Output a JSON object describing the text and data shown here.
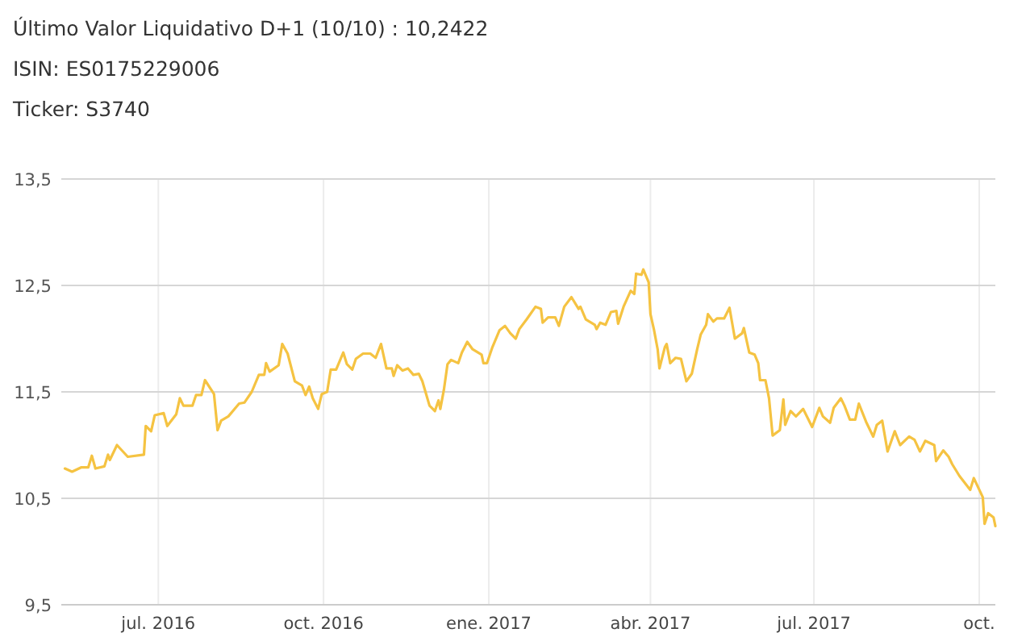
{
  "chart_data": {
    "type": "line",
    "title": "Último Valor Liquidativo D+1 (10/10) : 10,2422",
    "subtitle": "ISIN: ES0175229006",
    "annotations": [
      "Ticker: S3740"
    ],
    "xlim": [
      "2016-05-08",
      "2017-10-10"
    ],
    "xticks": [
      {
        "value": "2016-07-01",
        "label": "jul. 2016"
      },
      {
        "value": "2016-10-01",
        "label": "oct. 2016"
      },
      {
        "value": "2017-01-01",
        "label": "ene. 2017"
      },
      {
        "value": "2017-04-01",
        "label": "abr. 2017"
      },
      {
        "value": "2017-07-01",
        "label": "jul. 2017"
      },
      {
        "value": "2017-10-01",
        "label": "oct."
      }
    ],
    "ylim": [
      9.5,
      13.5
    ],
    "yticks": [
      {
        "value": 9.5,
        "label": "9,5"
      },
      {
        "value": 10.5,
        "label": "10,5"
      },
      {
        "value": 11.5,
        "label": "11,5"
      },
      {
        "value": 12.5,
        "label": "12,5"
      },
      {
        "value": 13.5,
        "label": "13,5"
      }
    ],
    "grid": true,
    "marker": "none",
    "line_style": "solid",
    "series": [
      {
        "color": "#f5c342",
        "x": [
          "2016-05-10",
          "2016-05-14",
          "2016-05-19",
          "2016-05-23",
          "2016-05-25",
          "2016-05-27",
          "2016-06-01",
          "2016-06-03",
          "2016-06-04",
          "2016-06-08",
          "2016-06-14",
          "2016-06-23",
          "2016-06-24",
          "2016-06-27",
          "2016-06-29",
          "2016-07-04",
          "2016-07-06",
          "2016-07-11",
          "2016-07-13",
          "2016-07-15",
          "2016-07-20",
          "2016-07-22",
          "2016-07-25",
          "2016-07-27",
          "2016-08-01",
          "2016-08-03",
          "2016-08-05",
          "2016-08-09",
          "2016-08-15",
          "2016-08-18",
          "2016-08-22",
          "2016-08-26",
          "2016-08-29",
          "2016-08-30",
          "2016-09-01",
          "2016-09-06",
          "2016-09-08",
          "2016-09-11",
          "2016-09-15",
          "2016-09-19",
          "2016-09-21",
          "2016-09-23",
          "2016-09-25",
          "2016-09-28",
          "2016-09-30",
          "2016-10-03",
          "2016-10-05",
          "2016-10-08",
          "2016-10-12",
          "2016-10-14",
          "2016-10-17",
          "2016-10-19",
          "2016-10-23",
          "2016-10-27",
          "2016-10-30",
          "2016-11-02",
          "2016-11-05",
          "2016-11-08",
          "2016-11-09",
          "2016-11-11",
          "2016-11-14",
          "2016-11-17",
          "2016-11-20",
          "2016-11-23",
          "2016-11-25",
          "2016-11-29",
          "2016-12-02",
          "2016-12-04",
          "2016-12-05",
          "2016-12-07",
          "2016-12-09",
          "2016-12-11",
          "2016-12-15",
          "2016-12-17",
          "2016-12-20",
          "2016-12-23",
          "2016-12-28",
          "2016-12-29",
          "2016-12-31",
          "2017-01-03",
          "2017-01-07",
          "2017-01-10",
          "2017-01-13",
          "2017-01-16",
          "2017-01-18",
          "2017-01-22",
          "2017-01-27",
          "2017-01-30",
          "2017-01-31",
          "2017-02-03",
          "2017-02-07",
          "2017-02-09",
          "2017-02-12",
          "2017-02-16",
          "2017-02-20",
          "2017-02-21",
          "2017-02-24",
          "2017-03-01",
          "2017-03-02",
          "2017-03-04",
          "2017-03-07",
          "2017-03-10",
          "2017-03-13",
          "2017-03-14",
          "2017-03-17",
          "2017-03-21",
          "2017-03-23",
          "2017-03-24",
          "2017-03-27",
          "2017-03-28",
          "2017-03-31",
          "2017-04-01",
          "2017-04-03",
          "2017-04-05",
          "2017-04-06",
          "2017-04-09",
          "2017-04-10",
          "2017-04-12",
          "2017-04-15",
          "2017-04-18",
          "2017-04-21",
          "2017-04-24",
          "2017-04-27",
          "2017-04-29",
          "2017-05-02",
          "2017-05-03",
          "2017-05-06",
          "2017-05-08",
          "2017-05-12",
          "2017-05-15",
          "2017-05-18",
          "2017-05-22",
          "2017-05-23",
          "2017-05-26",
          "2017-05-29",
          "2017-05-31",
          "2017-06-01",
          "2017-06-04",
          "2017-06-06",
          "2017-06-08",
          "2017-06-12",
          "2017-06-14",
          "2017-06-15",
          "2017-06-18",
          "2017-06-21",
          "2017-06-25",
          "2017-06-30",
          "2017-07-04",
          "2017-07-06",
          "2017-07-10",
          "2017-07-12",
          "2017-07-16",
          "2017-07-18",
          "2017-07-21",
          "2017-07-24",
          "2017-07-26",
          "2017-07-30",
          "2017-08-03",
          "2017-08-05",
          "2017-08-08",
          "2017-08-11",
          "2017-08-15",
          "2017-08-18",
          "2017-08-23",
          "2017-08-26",
          "2017-08-29",
          "2017-09-01",
          "2017-09-06",
          "2017-09-07",
          "2017-09-11",
          "2017-09-14",
          "2017-09-16",
          "2017-09-20",
          "2017-09-26",
          "2017-09-28",
          "2017-10-03",
          "2017-10-04",
          "2017-10-06",
          "2017-10-09",
          "2017-10-10"
        ],
        "values": [
          10.78,
          10.75,
          10.79,
          10.79,
          10.9,
          10.78,
          10.8,
          10.91,
          10.86,
          11.0,
          10.89,
          10.91,
          11.18,
          11.13,
          11.28,
          11.3,
          11.18,
          11.29,
          11.44,
          11.37,
          11.37,
          11.47,
          11.47,
          11.61,
          11.48,
          11.14,
          11.23,
          11.27,
          11.39,
          11.4,
          11.5,
          11.66,
          11.66,
          11.77,
          11.69,
          11.75,
          11.95,
          11.86,
          11.6,
          11.56,
          11.47,
          11.55,
          11.44,
          11.34,
          11.48,
          11.5,
          11.71,
          11.71,
          11.87,
          11.76,
          11.71,
          11.81,
          11.86,
          11.86,
          11.82,
          11.95,
          11.72,
          11.72,
          11.65,
          11.75,
          11.7,
          11.72,
          11.66,
          11.67,
          11.6,
          11.37,
          11.32,
          11.42,
          11.34,
          11.52,
          11.76,
          11.8,
          11.77,
          11.87,
          11.97,
          11.9,
          11.85,
          11.77,
          11.77,
          11.92,
          12.08,
          12.12,
          12.05,
          12.0,
          12.09,
          12.18,
          12.3,
          12.28,
          12.15,
          12.2,
          12.2,
          12.12,
          12.3,
          12.39,
          12.28,
          12.3,
          12.18,
          12.13,
          12.09,
          12.15,
          12.13,
          12.25,
          12.26,
          12.14,
          12.3,
          12.45,
          12.42,
          12.61,
          12.6,
          12.65,
          12.53,
          12.23,
          12.08,
          11.9,
          11.72,
          11.92,
          11.95,
          11.77,
          11.82,
          11.81,
          11.6,
          11.67,
          11.9,
          12.04,
          12.13,
          12.23,
          12.16,
          12.19,
          12.19,
          12.29,
          12.0,
          12.05,
          12.1,
          11.87,
          11.85,
          11.77,
          11.61,
          11.61,
          11.44,
          11.09,
          11.14,
          11.43,
          11.19,
          11.32,
          11.27,
          11.34,
          11.17,
          11.35,
          11.27,
          11.21,
          11.35,
          11.44,
          11.37,
          11.24,
          11.24,
          11.39,
          11.22,
          11.08,
          11.19,
          11.23,
          10.94,
          11.13,
          11.0,
          11.08,
          11.05,
          10.94,
          11.04,
          11.0,
          10.85,
          10.95,
          10.89,
          10.82,
          10.71,
          10.58,
          10.69,
          10.51,
          10.26,
          10.36,
          10.32,
          10.24
        ]
      }
    ]
  }
}
